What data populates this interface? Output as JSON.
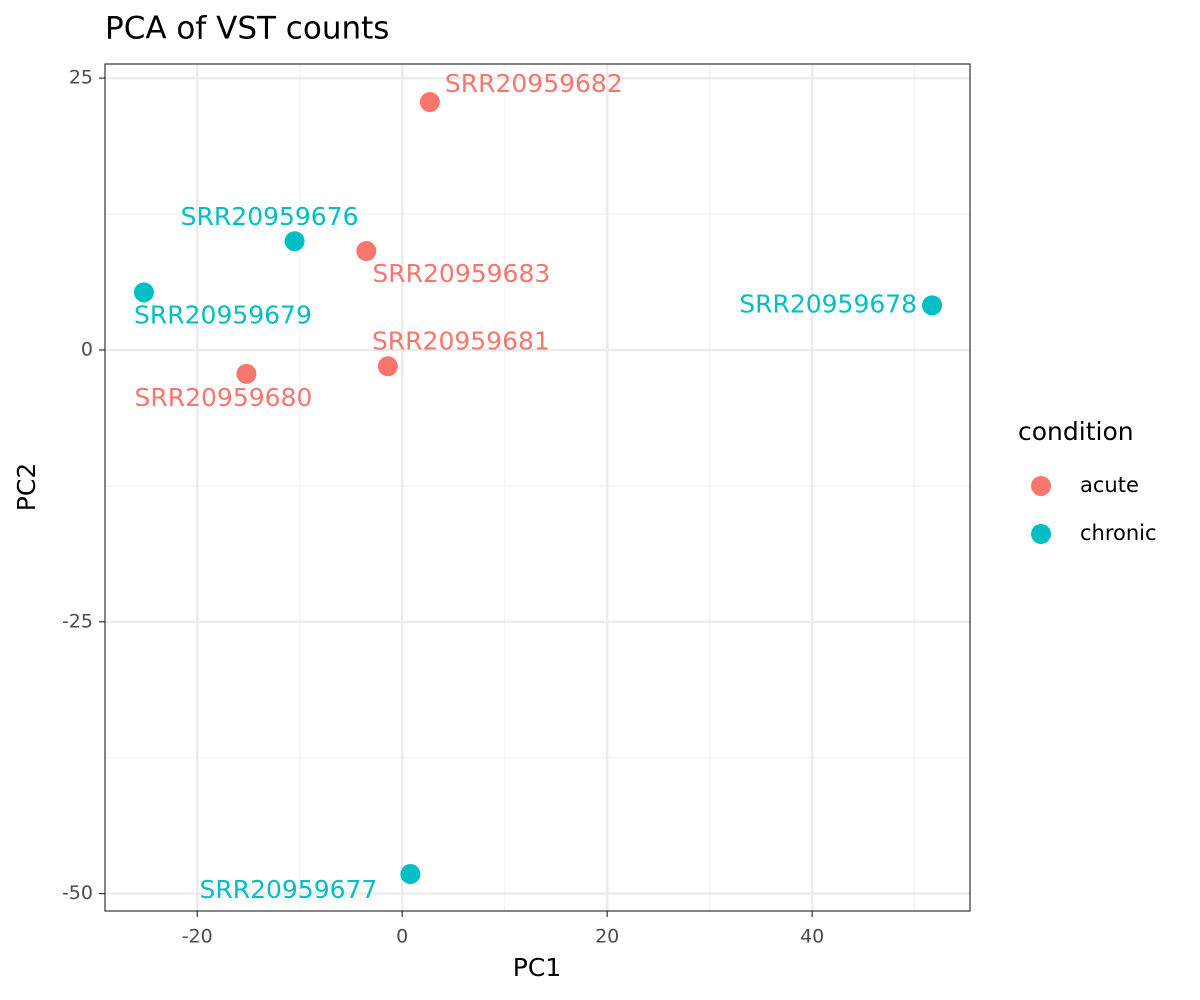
{
  "chart_data": {
    "type": "scatter",
    "title": "PCA of VST counts",
    "x_label": "PC1",
    "y_label": "PC2",
    "legend_title": "condition",
    "legend_position": "right",
    "xlim": [
      -29,
      55.4
    ],
    "ylim": [
      -51.6,
      26.3
    ],
    "xticks": [
      -20,
      0,
      20,
      40
    ],
    "yticks": [
      -50,
      -25,
      0,
      25
    ],
    "grid": true,
    "series": [
      {
        "name": "acute",
        "color": "#f8766d",
        "labels": [
          "SRR20959682",
          "SRR20959683",
          "SRR20959681",
          "SRR20959680"
        ],
        "x": [
          2.7,
          -3.5,
          -1.4,
          -15.2
        ],
        "y": [
          22.8,
          9.1,
          -1.5,
          -2.2
        ]
      },
      {
        "name": "chronic",
        "color": "#00bfc4",
        "labels": [
          "SRR20959676",
          "SRR20959679",
          "SRR20959678",
          "SRR20959677"
        ],
        "x": [
          -10.5,
          -25.2,
          51.7,
          0.8
        ],
        "y": [
          10.0,
          5.3,
          4.1,
          -48.2
        ]
      }
    ]
  }
}
